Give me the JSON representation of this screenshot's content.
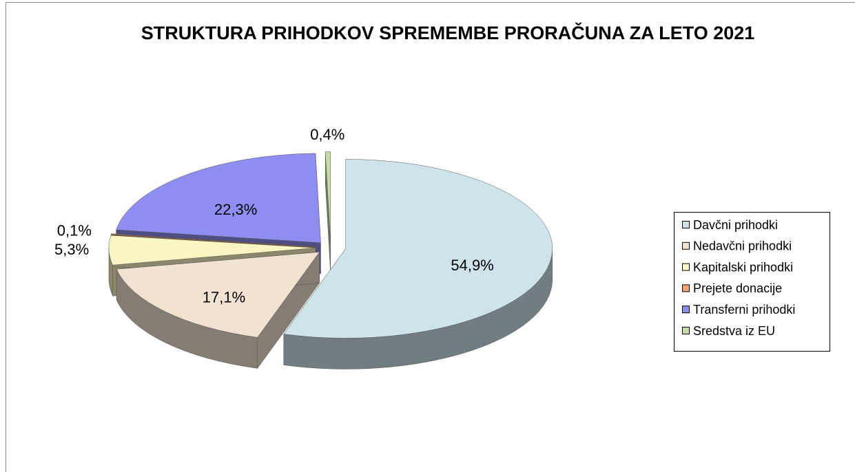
{
  "chart_data": {
    "type": "pie",
    "title": "STRUKTURA PRIHODKOV SPREMEMBE PRORAČUNA ZA LETO 2021",
    "categories": [
      "Davčni prihodki",
      "Nedavčni prihodki",
      "Kapitalski prihodki",
      "Prejete donacije",
      "Transferni prihodki",
      "Sredstva iz EU"
    ],
    "values": [
      54.9,
      17.1,
      5.3,
      0.1,
      22.3,
      0.4
    ],
    "value_labels": [
      "54,9%",
      "17,1%",
      "5,3%",
      "0,1%",
      "22,3%",
      "0,4%"
    ],
    "colors": [
      "#cfe4ea",
      "#f2e2d2",
      "#faf6c4",
      "#f4a46a",
      "#8e8ef2",
      "#cadca2"
    ],
    "legend": "right"
  }
}
